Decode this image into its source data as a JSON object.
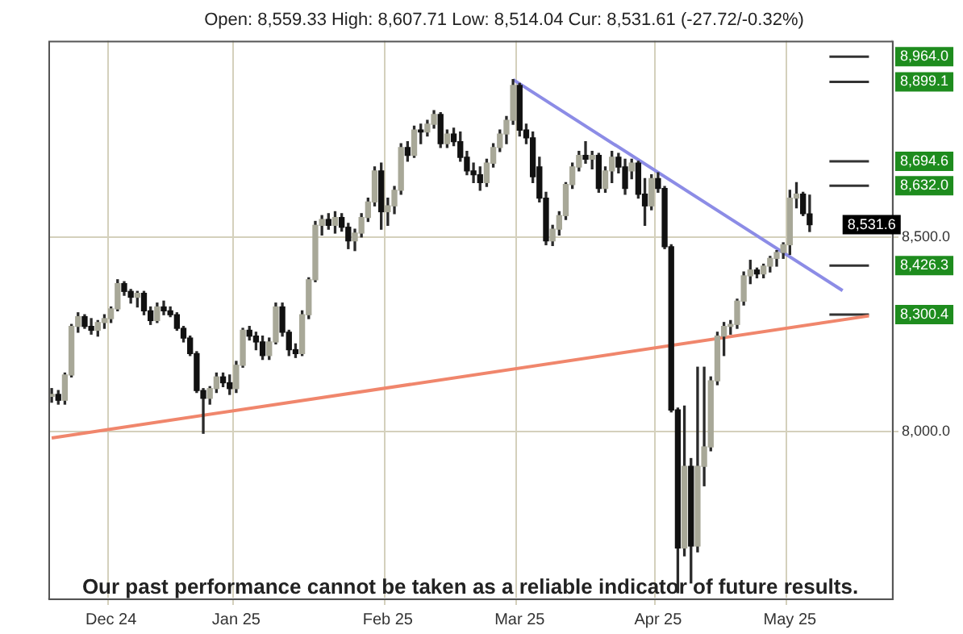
{
  "chart_data": {
    "type": "candlestick",
    "subtitle": "Open: 8,559.33 High: 8,607.71 Low: 8,514.04 Cur: 8,531.61 (-27.72/-0.32%)",
    "categories": [
      null,
      null,
      null,
      null,
      null,
      null,
      null,
      null,
      null,
      "Dec 24",
      null,
      null,
      null,
      null,
      null,
      null,
      null,
      null,
      null,
      null,
      null,
      null,
      null,
      null,
      null,
      null,
      null,
      null,
      "Jan 25",
      null,
      null,
      null,
      null,
      null,
      null,
      null,
      null,
      null,
      null,
      null,
      null,
      null,
      null,
      null,
      null,
      null,
      null,
      null,
      null,
      null,
      null,
      "Feb 25",
      null,
      null,
      null,
      null,
      null,
      null,
      null,
      null,
      null,
      null,
      null,
      null,
      null,
      null,
      null,
      null,
      null,
      null,
      null,
      "Mar 25",
      null,
      null,
      null,
      null,
      null,
      null,
      null,
      null,
      null,
      null,
      null,
      null,
      null,
      null,
      null,
      null,
      null,
      null,
      null,
      null,
      "Apr 25",
      null,
      null,
      null,
      null,
      null,
      null,
      null,
      null,
      null,
      null,
      null,
      null,
      null,
      null,
      null,
      null,
      null,
      null,
      null,
      "May 25",
      null,
      null,
      null,
      null,
      null,
      null,
      null,
      null,
      null,
      null,
      null,
      null,
      null,
      null,
      null
    ],
    "ohlc": [
      [
        8090,
        8110,
        8075,
        8095
      ],
      [
        8095,
        8105,
        8070,
        8080
      ],
      [
        8080,
        8150,
        8070,
        8145
      ],
      [
        8145,
        8275,
        8140,
        8270
      ],
      [
        8270,
        8305,
        8255,
        8295
      ],
      [
        8295,
        8300,
        8265,
        8270
      ],
      [
        8270,
        8290,
        8250,
        8260
      ],
      [
        8260,
        8285,
        8245,
        8280
      ],
      [
        8280,
        8300,
        8265,
        8290
      ],
      [
        8290,
        8320,
        8280,
        8315
      ],
      [
        8315,
        8390,
        8310,
        8380
      ],
      [
        8380,
        8385,
        8350,
        8360
      ],
      [
        8360,
        8365,
        8330,
        8345
      ],
      [
        8345,
        8360,
        8320,
        8355
      ],
      [
        8355,
        8360,
        8300,
        8310
      ],
      [
        8310,
        8320,
        8275,
        8285
      ],
      [
        8285,
        8330,
        8280,
        8320
      ],
      [
        8320,
        8335,
        8300,
        8310
      ],
      [
        8310,
        8320,
        8295,
        8300
      ],
      [
        8300,
        8305,
        8260,
        8265
      ],
      [
        8265,
        8270,
        8230,
        8240
      ],
      [
        8240,
        8245,
        8195,
        8200
      ],
      [
        8200,
        8205,
        8100,
        8105
      ],
      [
        8105,
        8110,
        7995,
        8085
      ],
      [
        8085,
        8115,
        8070,
        8110
      ],
      [
        8110,
        8150,
        8100,
        8140
      ],
      [
        8140,
        8150,
        8115,
        8125
      ],
      [
        8125,
        8145,
        8095,
        8110
      ],
      [
        8110,
        8180,
        8100,
        8170
      ],
      [
        8170,
        8265,
        8165,
        8260
      ],
      [
        8260,
        8270,
        8235,
        8245
      ],
      [
        8245,
        8255,
        8210,
        8230
      ],
      [
        8230,
        8245,
        8185,
        8195
      ],
      [
        8195,
        8240,
        8185,
        8230
      ],
      [
        8230,
        8330,
        8225,
        8320
      ],
      [
        8320,
        8330,
        8245,
        8255
      ],
      [
        8255,
        8260,
        8195,
        8210
      ],
      [
        8210,
        8225,
        8190,
        8200
      ],
      [
        8200,
        8310,
        8195,
        8300
      ],
      [
        8300,
        8395,
        8290,
        8390
      ],
      [
        8390,
        8540,
        8385,
        8530
      ],
      [
        8530,
        8555,
        8505,
        8545
      ],
      [
        8545,
        8560,
        8520,
        8530
      ],
      [
        8530,
        8565,
        8510,
        8550
      ],
      [
        8550,
        8560,
        8515,
        8525
      ],
      [
        8525,
        8535,
        8470,
        8490
      ],
      [
        8490,
        8520,
        8465,
        8510
      ],
      [
        8510,
        8560,
        8500,
        8550
      ],
      [
        8550,
        8600,
        8540,
        8590
      ],
      [
        8590,
        8680,
        8580,
        8670
      ],
      [
        8670,
        8690,
        8520,
        8565
      ],
      [
        8565,
        8600,
        8530,
        8580
      ],
      [
        8580,
        8630,
        8560,
        8620
      ],
      [
        8620,
        8740,
        8610,
        8730
      ],
      [
        8730,
        8745,
        8695,
        8710
      ],
      [
        8710,
        8785,
        8705,
        8775
      ],
      [
        8775,
        8790,
        8740,
        8770
      ],
      [
        8770,
        8800,
        8760,
        8790
      ],
      [
        8790,
        8825,
        8780,
        8815
      ],
      [
        8815,
        8820,
        8730,
        8740
      ],
      [
        8740,
        8775,
        8730,
        8765
      ],
      [
        8765,
        8780,
        8735,
        8745
      ],
      [
        8745,
        8770,
        8695,
        8705
      ],
      [
        8705,
        8720,
        8660,
        8670
      ],
      [
        8670,
        8690,
        8640,
        8660
      ],
      [
        8660,
        8680,
        8620,
        8640
      ],
      [
        8640,
        8700,
        8630,
        8690
      ],
      [
        8690,
        8740,
        8680,
        8730
      ],
      [
        8730,
        8775,
        8720,
        8765
      ],
      [
        8765,
        8810,
        8740,
        8800
      ],
      [
        8800,
        8905,
        8790,
        8890
      ],
      [
        8890,
        8895,
        8760,
        8775
      ],
      [
        8775,
        8790,
        8740,
        8755
      ],
      [
        8755,
        8770,
        8640,
        8655
      ],
      [
        8680,
        8705,
        8590,
        8600
      ],
      [
        8600,
        8615,
        8480,
        8490
      ],
      [
        8490,
        8530,
        8478,
        8520
      ],
      [
        8520,
        8565,
        8505,
        8555
      ],
      [
        8555,
        8640,
        8545,
        8635
      ],
      [
        8635,
        8690,
        8625,
        8680
      ],
      [
        8680,
        8720,
        8670,
        8710
      ],
      [
        8710,
        8745,
        8690,
        8700
      ],
      [
        8700,
        8720,
        8675,
        8710
      ],
      [
        8710,
        8715,
        8615,
        8625
      ],
      [
        8625,
        8680,
        8615,
        8670
      ],
      [
        8670,
        8720,
        8640,
        8705
      ],
      [
        8705,
        8715,
        8665,
        8680
      ],
      [
        8680,
        8700,
        8610,
        8625
      ],
      [
        8670,
        8700,
        8650,
        8690
      ],
      [
        8690,
        8695,
        8600,
        8610
      ],
      [
        8610,
        8650,
        8530,
        8580
      ],
      [
        8580,
        8660,
        8570,
        8650
      ],
      [
        8650,
        8665,
        8615,
        8625
      ],
      [
        8625,
        8630,
        8470,
        8475
      ],
      [
        8475,
        8480,
        8050,
        8055
      ],
      [
        8055,
        8060,
        7585,
        7700
      ],
      [
        7700,
        8065,
        7680,
        7910
      ],
      [
        7910,
        7930,
        7610,
        7705
      ],
      [
        7705,
        8165,
        7690,
        7910
      ],
      [
        7910,
        8165,
        7860,
        7960
      ],
      [
        7960,
        8140,
        7950,
        8130
      ],
      [
        8130,
        8255,
        8120,
        8245
      ],
      [
        8245,
        8280,
        8195,
        8270
      ],
      [
        8270,
        8285,
        8250,
        8275
      ],
      [
        8275,
        8340,
        8265,
        8335
      ],
      [
        8335,
        8410,
        8325,
        8400
      ],
      [
        8400,
        8440,
        8380,
        8415
      ],
      [
        8415,
        8420,
        8395,
        8405
      ],
      [
        8405,
        8430,
        8395,
        8425
      ],
      [
        8425,
        8450,
        8410,
        8445
      ],
      [
        8445,
        8465,
        8425,
        8460
      ],
      [
        8460,
        8485,
        8445,
        8480
      ],
      [
        8480,
        8620,
        8455,
        8600
      ],
      [
        8600,
        8640,
        8575,
        8610
      ],
      [
        8610,
        8615,
        8555,
        8560
      ],
      [
        8559.33,
        8607.71,
        8514.04,
        8531.61
      ],
      null,
      null,
      null,
      null,
      null,
      null,
      null,
      null,
      null,
      null,
      null,
      null
    ],
    "series": [
      {
        "type": "line",
        "color": "#8c8ce6",
        "values": [
          null,
          null,
          null,
          null,
          null,
          null,
          null,
          null,
          null,
          null,
          null,
          null,
          null,
          null,
          null,
          null,
          null,
          null,
          null,
          null,
          null,
          null,
          null,
          null,
          null,
          null,
          null,
          null,
          null,
          null,
          null,
          null,
          null,
          null,
          null,
          null,
          null,
          null,
          null,
          null,
          null,
          null,
          null,
          null,
          null,
          null,
          null,
          null,
          null,
          null,
          null,
          null,
          null,
          null,
          null,
          null,
          null,
          null,
          null,
          null,
          null,
          null,
          null,
          null,
          null,
          null,
          null,
          null,
          null,
          null,
          8905,
          null,
          null,
          null,
          null,
          null,
          null,
          null,
          null,
          null,
          null,
          null,
          null,
          null,
          null,
          null,
          null,
          null,
          null,
          null,
          null,
          null,
          null,
          null,
          null,
          null,
          null,
          null,
          null,
          null,
          null,
          null,
          null,
          null,
          null,
          null,
          null,
          null,
          null,
          null,
          null,
          null,
          null,
          null,
          null,
          null,
          null,
          null,
          null,
          null,
          8362,
          null,
          null,
          null,
          null,
          null,
          null,
          null
        ]
      },
      {
        "type": "line",
        "color": "#f0866c",
        "values": [
          7983,
          null,
          null,
          null,
          null,
          null,
          null,
          null,
          null,
          null,
          null,
          null,
          null,
          null,
          null,
          null,
          null,
          null,
          null,
          null,
          null,
          null,
          null,
          null,
          null,
          null,
          null,
          null,
          null,
          null,
          null,
          null,
          null,
          null,
          null,
          null,
          null,
          null,
          null,
          null,
          null,
          null,
          null,
          null,
          null,
          null,
          null,
          null,
          null,
          null,
          null,
          null,
          null,
          null,
          null,
          null,
          null,
          null,
          null,
          null,
          null,
          null,
          null,
          null,
          null,
          null,
          null,
          null,
          null,
          null,
          null,
          null,
          null,
          null,
          null,
          null,
          null,
          null,
          null,
          null,
          null,
          null,
          null,
          null,
          null,
          null,
          null,
          null,
          null,
          null,
          null,
          null,
          null,
          null,
          null,
          null,
          null,
          null,
          null,
          null,
          null,
          null,
          null,
          null,
          null,
          null,
          null,
          null,
          null,
          null,
          null,
          null,
          null,
          null,
          null,
          null,
          null,
          null,
          null,
          null,
          null,
          null,
          null,
          null,
          8297,
          null,
          null,
          null
        ]
      },
      {
        "type": "line",
        "name": "8,964.0",
        "color": "#333333",
        "values": [
          null,
          null,
          null,
          null,
          null,
          null,
          null,
          null,
          null,
          null,
          null,
          null,
          null,
          null,
          null,
          null,
          null,
          null,
          null,
          null,
          null,
          null,
          null,
          null,
          null,
          null,
          null,
          null,
          null,
          null,
          null,
          null,
          null,
          null,
          null,
          null,
          null,
          null,
          null,
          null,
          null,
          null,
          null,
          null,
          null,
          null,
          null,
          null,
          null,
          null,
          null,
          null,
          null,
          null,
          null,
          null,
          null,
          null,
          null,
          null,
          null,
          null,
          null,
          null,
          null,
          null,
          null,
          null,
          null,
          null,
          null,
          null,
          null,
          null,
          null,
          null,
          null,
          null,
          null,
          null,
          null,
          null,
          null,
          null,
          null,
          null,
          null,
          null,
          null,
          null,
          null,
          null,
          null,
          null,
          null,
          null,
          null,
          null,
          null,
          null,
          null,
          null,
          null,
          null,
          null,
          null,
          null,
          null,
          null,
          null,
          null,
          null,
          null,
          null,
          null,
          null,
          null,
          null,
          8964.0,
          8964.0,
          8964.0,
          8964.0,
          8964.0,
          8964.0,
          8964.0,
          null,
          null,
          null
        ]
      },
      {
        "type": "line",
        "name": "8,899.1",
        "color": "#333333",
        "values": [
          null,
          null,
          null,
          null,
          null,
          null,
          null,
          null,
          null,
          null,
          null,
          null,
          null,
          null,
          null,
          null,
          null,
          null,
          null,
          null,
          null,
          null,
          null,
          null,
          null,
          null,
          null,
          null,
          null,
          null,
          null,
          null,
          null,
          null,
          null,
          null,
          null,
          null,
          null,
          null,
          null,
          null,
          null,
          null,
          null,
          null,
          null,
          null,
          null,
          null,
          null,
          null,
          null,
          null,
          null,
          null,
          null,
          null,
          null,
          null,
          null,
          null,
          null,
          null,
          null,
          null,
          null,
          null,
          null,
          null,
          null,
          null,
          null,
          null,
          null,
          null,
          null,
          null,
          null,
          null,
          null,
          null,
          null,
          null,
          null,
          null,
          null,
          null,
          null,
          null,
          null,
          null,
          null,
          null,
          null,
          null,
          null,
          null,
          null,
          null,
          null,
          null,
          null,
          null,
          null,
          null,
          null,
          null,
          null,
          null,
          null,
          null,
          null,
          null,
          null,
          null,
          null,
          null,
          8899.1,
          8899.1,
          8899.1,
          8899.1,
          8899.1,
          8899.1,
          8899.1,
          null,
          null,
          null
        ]
      },
      {
        "type": "line",
        "name": "8,694.6",
        "color": "#333333",
        "values": [
          null,
          null,
          null,
          null,
          null,
          null,
          null,
          null,
          null,
          null,
          null,
          null,
          null,
          null,
          null,
          null,
          null,
          null,
          null,
          null,
          null,
          null,
          null,
          null,
          null,
          null,
          null,
          null,
          null,
          null,
          null,
          null,
          null,
          null,
          null,
          null,
          null,
          null,
          null,
          null,
          null,
          null,
          null,
          null,
          null,
          null,
          null,
          null,
          null,
          null,
          null,
          null,
          null,
          null,
          null,
          null,
          null,
          null,
          null,
          null,
          null,
          null,
          null,
          null,
          null,
          null,
          null,
          null,
          null,
          null,
          null,
          null,
          null,
          null,
          null,
          null,
          null,
          null,
          null,
          null,
          null,
          null,
          null,
          null,
          null,
          null,
          null,
          null,
          null,
          null,
          null,
          null,
          null,
          null,
          null,
          null,
          null,
          null,
          null,
          null,
          null,
          null,
          null,
          null,
          null,
          null,
          null,
          null,
          null,
          null,
          null,
          null,
          null,
          null,
          null,
          null,
          null,
          null,
          8694.6,
          8694.6,
          8694.6,
          8694.6,
          8694.6,
          8694.6,
          8694.6,
          null,
          null,
          null
        ]
      },
      {
        "type": "line",
        "name": "8,632.0",
        "color": "#333333",
        "values": [
          null,
          null,
          null,
          null,
          null,
          null,
          null,
          null,
          null,
          null,
          null,
          null,
          null,
          null,
          null,
          null,
          null,
          null,
          null,
          null,
          null,
          null,
          null,
          null,
          null,
          null,
          null,
          null,
          null,
          null,
          null,
          null,
          null,
          null,
          null,
          null,
          null,
          null,
          null,
          null,
          null,
          null,
          null,
          null,
          null,
          null,
          null,
          null,
          null,
          null,
          null,
          null,
          null,
          null,
          null,
          null,
          null,
          null,
          null,
          null,
          null,
          null,
          null,
          null,
          null,
          null,
          null,
          null,
          null,
          null,
          null,
          null,
          null,
          null,
          null,
          null,
          null,
          null,
          null,
          null,
          null,
          null,
          null,
          null,
          null,
          null,
          null,
          null,
          null,
          null,
          null,
          null,
          null,
          null,
          null,
          null,
          null,
          null,
          null,
          null,
          null,
          null,
          null,
          null,
          null,
          null,
          null,
          null,
          null,
          null,
          null,
          null,
          null,
          null,
          null,
          null,
          null,
          null,
          8632.0,
          8632.0,
          8632.0,
          8632.0,
          8632.0,
          8632.0,
          8632.0,
          null,
          null,
          null
        ]
      },
      {
        "type": "line",
        "name": "8,426.3",
        "color": "#333333",
        "values": [
          null,
          null,
          null,
          null,
          null,
          null,
          null,
          null,
          null,
          null,
          null,
          null,
          null,
          null,
          null,
          null,
          null,
          null,
          null,
          null,
          null,
          null,
          null,
          null,
          null,
          null,
          null,
          null,
          null,
          null,
          null,
          null,
          null,
          null,
          null,
          null,
          null,
          null,
          null,
          null,
          null,
          null,
          null,
          null,
          null,
          null,
          null,
          null,
          null,
          null,
          null,
          null,
          null,
          null,
          null,
          null,
          null,
          null,
          null,
          null,
          null,
          null,
          null,
          null,
          null,
          null,
          null,
          null,
          null,
          null,
          null,
          null,
          null,
          null,
          null,
          null,
          null,
          null,
          null,
          null,
          null,
          null,
          null,
          null,
          null,
          null,
          null,
          null,
          null,
          null,
          null,
          null,
          null,
          null,
          null,
          null,
          null,
          null,
          null,
          null,
          null,
          null,
          null,
          null,
          null,
          null,
          null,
          null,
          null,
          null,
          null,
          null,
          null,
          null,
          null,
          null,
          null,
          null,
          8426.3,
          8426.3,
          8426.3,
          8426.3,
          8426.3,
          8426.3,
          8426.3,
          null,
          null,
          null
        ]
      },
      {
        "type": "line",
        "name": "8,300.4",
        "color": "#333333",
        "values": [
          null,
          null,
          null,
          null,
          null,
          null,
          null,
          null,
          null,
          null,
          null,
          null,
          null,
          null,
          null,
          null,
          null,
          null,
          null,
          null,
          null,
          null,
          null,
          null,
          null,
          null,
          null,
          null,
          null,
          null,
          null,
          null,
          null,
          null,
          null,
          null,
          null,
          null,
          null,
          null,
          null,
          null,
          null,
          null,
          null,
          null,
          null,
          null,
          null,
          null,
          null,
          null,
          null,
          null,
          null,
          null,
          null,
          null,
          null,
          null,
          null,
          null,
          null,
          null,
          null,
          null,
          null,
          null,
          null,
          null,
          null,
          null,
          null,
          null,
          null,
          null,
          null,
          null,
          null,
          null,
          null,
          null,
          null,
          null,
          null,
          null,
          null,
          null,
          null,
          null,
          null,
          null,
          null,
          null,
          null,
          null,
          null,
          null,
          null,
          null,
          null,
          null,
          null,
          null,
          null,
          null,
          null,
          null,
          null,
          null,
          null,
          null,
          null,
          null,
          null,
          null,
          null,
          null,
          8300.4,
          8300.4,
          8300.4,
          8300.4,
          8300.4,
          8300.4,
          8300.4,
          null,
          null,
          null
        ]
      }
    ],
    "ylim": [
      7570,
      9005
    ],
    "yticks": [
      {
        "value": 8000,
        "label": "8,000.0"
      },
      {
        "value": 8500,
        "label": "8,500.0"
      }
    ],
    "grid": true,
    "legend": false,
    "annotations": [
      {
        "text": "8,531.6",
        "y": 8531.61
      },
      "Our past performance cannot be taken as a reliable indicator of future results."
    ]
  }
}
